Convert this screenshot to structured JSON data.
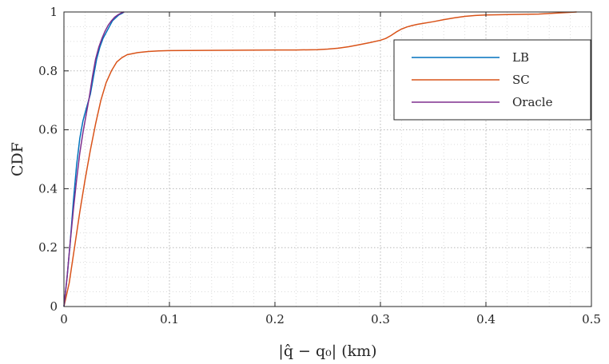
{
  "chart_data": {
    "type": "line",
    "xlabel": "|q̂ − q₀| (km)",
    "ylabel": "CDF",
    "xlim": [
      0,
      0.5
    ],
    "ylim": [
      0,
      1
    ],
    "x_ticks": [
      0,
      0.1,
      0.2,
      0.3,
      0.4,
      0.5
    ],
    "x_tick_labels": [
      "0",
      "0.1",
      "0.2",
      "0.3",
      "0.4",
      "0.5"
    ],
    "y_ticks": [
      0,
      0.2,
      0.4,
      0.6,
      0.8,
      1
    ],
    "y_tick_labels": [
      "0",
      "0.2",
      "0.4",
      "0.6",
      "0.8",
      "1"
    ],
    "grid": "major and minor, dotted",
    "legend_position": "top-right",
    "series": [
      {
        "name": "LB",
        "color": "#0072BD",
        "x": [
          0,
          0.003,
          0.006,
          0.009,
          0.012,
          0.015,
          0.018,
          0.021,
          0.025,
          0.028,
          0.031,
          0.034,
          0.037,
          0.04,
          0.043,
          0.046,
          0.049,
          0.052,
          0.055,
          0.057
        ],
        "y": [
          0,
          0.1,
          0.22,
          0.36,
          0.48,
          0.57,
          0.63,
          0.67,
          0.72,
          0.78,
          0.84,
          0.88,
          0.91,
          0.93,
          0.95,
          0.97,
          0.98,
          0.99,
          0.995,
          1.0
        ]
      },
      {
        "name": "SC",
        "color": "#D95319",
        "x": [
          0,
          0.005,
          0.01,
          0.015,
          0.02,
          0.025,
          0.03,
          0.035,
          0.04,
          0.045,
          0.05,
          0.055,
          0.06,
          0.07,
          0.08,
          0.09,
          0.1,
          0.15,
          0.2,
          0.22,
          0.24,
          0.25,
          0.26,
          0.27,
          0.28,
          0.29,
          0.3,
          0.305,
          0.31,
          0.315,
          0.32,
          0.325,
          0.33,
          0.335,
          0.34,
          0.35,
          0.36,
          0.37,
          0.38,
          0.39,
          0.4,
          0.45,
          0.486
        ],
        "y": [
          0,
          0.08,
          0.2,
          0.32,
          0.43,
          0.53,
          0.62,
          0.7,
          0.76,
          0.8,
          0.83,
          0.845,
          0.855,
          0.862,
          0.866,
          0.868,
          0.869,
          0.87,
          0.871,
          0.871,
          0.872,
          0.874,
          0.877,
          0.882,
          0.889,
          0.896,
          0.904,
          0.91,
          0.92,
          0.932,
          0.942,
          0.949,
          0.954,
          0.958,
          0.961,
          0.967,
          0.974,
          0.98,
          0.985,
          0.988,
          0.99,
          0.993,
          1.0
        ]
      },
      {
        "name": "Oracle",
        "color": "#7E2F8E",
        "x": [
          0,
          0.003,
          0.006,
          0.009,
          0.012,
          0.015,
          0.018,
          0.021,
          0.024,
          0.027,
          0.03,
          0.033,
          0.036,
          0.039,
          0.042,
          0.045,
          0.048,
          0.051,
          0.054,
          0.057
        ],
        "y": [
          0,
          0.1,
          0.22,
          0.33,
          0.43,
          0.52,
          0.59,
          0.65,
          0.71,
          0.78,
          0.84,
          0.88,
          0.91,
          0.935,
          0.955,
          0.97,
          0.982,
          0.99,
          0.996,
          1.0
        ]
      }
    ]
  }
}
